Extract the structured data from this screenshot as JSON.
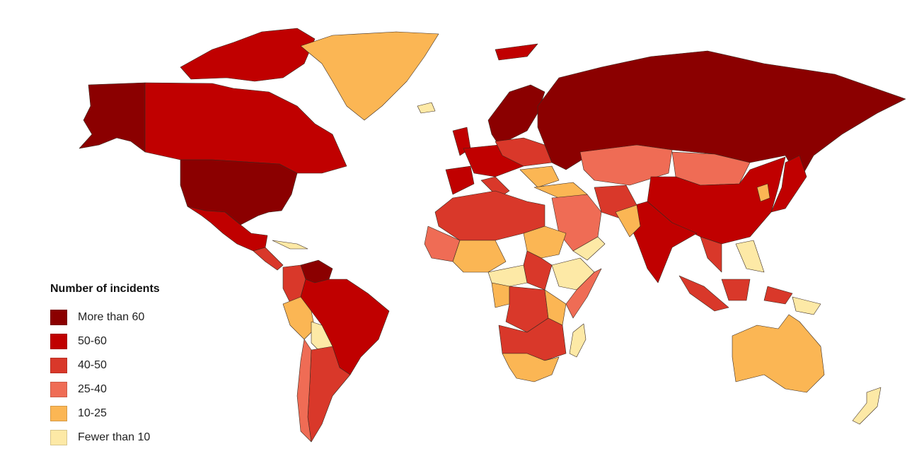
{
  "legend": {
    "title": "Number of incidents",
    "items": [
      {
        "label": "More than 60",
        "color": "#8b0000"
      },
      {
        "label": "50-60",
        "color": "#c00000"
      },
      {
        "label": "40-50",
        "color": "#d9382a"
      },
      {
        "label": "25-40",
        "color": "#ef6c55"
      },
      {
        "label": "10-25",
        "color": "#fbb654"
      },
      {
        "label": "Fewer than 10",
        "color": "#fde9a6"
      }
    ]
  }
}
